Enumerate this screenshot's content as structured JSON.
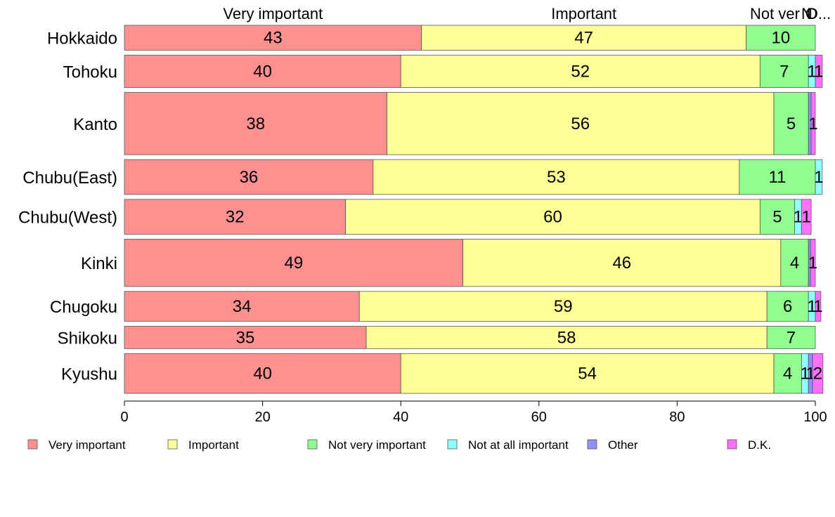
{
  "chart_data": {
    "type": "bar",
    "orientation": "horizontal",
    "stacked": true,
    "categories": [
      "Hokkaido",
      "Tohoku",
      "Kanto",
      "Chubu(East)",
      "Chubu(West)",
      "Kinki",
      "Chugoku",
      "Shikoku",
      "Kyushu"
    ],
    "series": [
      {
        "name": "Very important",
        "color": "#FF9090",
        "values": [
          43,
          40,
          38,
          36,
          32,
          49,
          34,
          35,
          40
        ]
      },
      {
        "name": "Important",
        "color": "#FFFF98",
        "values": [
          47,
          52,
          56,
          53,
          60,
          46,
          59,
          58,
          54
        ]
      },
      {
        "name": "Not very important",
        "color": "#90FF90",
        "values": [
          10,
          7,
          5,
          11,
          5,
          4,
          6,
          7,
          4
        ]
      },
      {
        "name": "Not at all important",
        "color": "#90FFFF",
        "values": [
          0,
          1,
          0,
          1,
          1,
          0,
          1,
          0,
          1
        ]
      },
      {
        "name": "Other",
        "color": "#9090FF",
        "values": [
          0,
          0,
          0.4,
          0,
          0,
          0.3,
          0,
          0,
          0.6
        ]
      },
      {
        "name": "D.K.",
        "color": "#FF70FF",
        "values": [
          0,
          1,
          0.6,
          0,
          1.4,
          0.7,
          0.8,
          0,
          1.5
        ]
      }
    ],
    "segment_labels": [
      [
        "43",
        "47",
        "10",
        "",
        "",
        ""
      ],
      [
        "40",
        "52",
        "7",
        "1",
        "",
        "1"
      ],
      [
        "38",
        "56",
        "5",
        "",
        "",
        "1"
      ],
      [
        "36",
        "53",
        "11",
        "1",
        "",
        ""
      ],
      [
        "32",
        "60",
        "5",
        "1",
        "",
        "1"
      ],
      [
        "49",
        "46",
        "4",
        "",
        "",
        "1"
      ],
      [
        "34",
        "59",
        "6",
        "1",
        "",
        "1"
      ],
      [
        "35",
        "58",
        "7",
        "",
        "",
        ""
      ],
      [
        "40",
        "54",
        "4",
        "1",
        "1",
        "2"
      ]
    ],
    "bar_widths": [
      1.0,
      1.3,
      2.5,
      1.4,
      1.4,
      1.9,
      1.2,
      0.9,
      1.6
    ],
    "column_headers": [
      "Very important",
      "Important",
      "Not very important",
      "Not at all important",
      "Other",
      "D.K."
    ],
    "column_headers_display": [
      "Very important",
      "Important",
      "Not ver",
      "N",
      "O",
      "D..."
    ],
    "x_ticks": [
      0,
      20,
      40,
      60,
      80,
      100
    ],
    "xlim": [
      0,
      100
    ],
    "xlabel": "",
    "ylabel": "",
    "title": "",
    "grid": false,
    "legend_position": "bottom"
  }
}
